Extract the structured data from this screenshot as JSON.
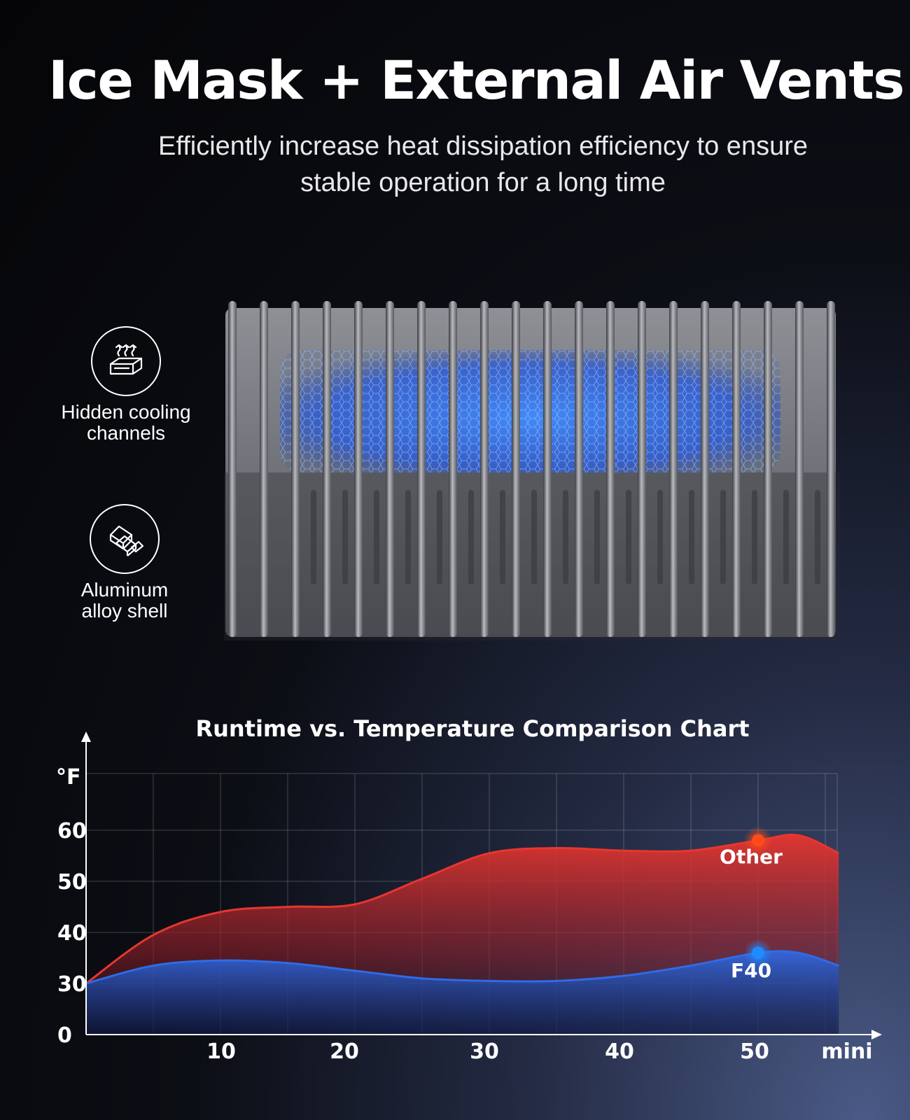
{
  "header": {
    "title": "Ice Mask + External Air Vents",
    "subtitle_line1": "Efficiently increase heat dissipation efficiency to ensure",
    "subtitle_line2": "stable operation for a long time"
  },
  "features": [
    {
      "icon": "heat-rising-icon",
      "label_line1": "Hidden cooling",
      "label_line2": "channels"
    },
    {
      "icon": "aluminum-ingots-icon",
      "label_line1": "Aluminum",
      "label_line2": "alloy shell"
    }
  ],
  "colors": {
    "other": "#e8362f",
    "f40": "#2f6be8",
    "glow_other": "#ff4a1a",
    "glow_f40": "#1e8bff"
  },
  "chart_data": {
    "type": "area",
    "title": "Runtime vs. Temperature Comparison Chart",
    "ylabel": "°F",
    "xlabel": "mini",
    "x_ticks": [
      10,
      20,
      30,
      40,
      50
    ],
    "y_ticks": [
      0,
      30,
      40,
      50,
      60
    ],
    "grid": true,
    "series": [
      {
        "name": "Other",
        "x": [
          0,
          5,
          10,
          15,
          20,
          25,
          30,
          35,
          40,
          45,
          50,
          53,
          56
        ],
        "values": [
          30,
          39.5,
          44,
          45,
          45.5,
          50.5,
          55.5,
          56.5,
          56,
          56,
          58,
          59,
          55.5
        ]
      },
      {
        "name": "F40",
        "x": [
          0,
          5,
          10,
          15,
          20,
          25,
          30,
          35,
          40,
          45,
          50,
          53,
          56
        ],
        "values": [
          30,
          33.5,
          34.5,
          34,
          32.5,
          31,
          30.5,
          30.5,
          31.5,
          33.5,
          36,
          36,
          33.5
        ]
      }
    ],
    "highlight_x": 50
  }
}
